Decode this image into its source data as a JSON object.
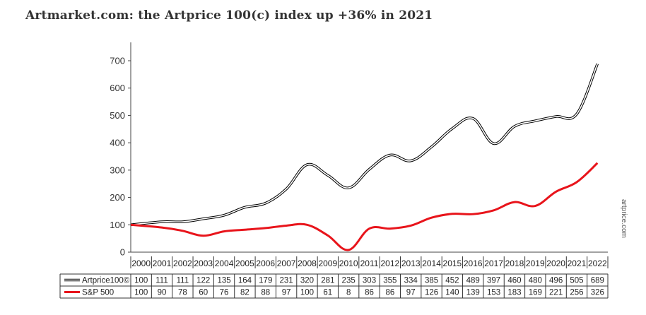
{
  "page": {
    "title": "Artmarket.com: the Artprice 100(c) index up +36% in 2021",
    "watermark": "artprice.com"
  },
  "chart_data": {
    "type": "line",
    "title": "Artmarket.com: the Artprice 100(c) index up +36% in 2021",
    "xlabel": "",
    "ylabel": "",
    "categories": [
      "2000",
      "2001",
      "2002",
      "2003",
      "2004",
      "2005",
      "2006",
      "2007",
      "2008",
      "2009",
      "2010",
      "2011",
      "2012",
      "2013",
      "2014",
      "2015",
      "2016",
      "2017",
      "2018",
      "2019",
      "2020",
      "2021",
      "2022"
    ],
    "ylim": [
      0,
      700
    ],
    "yticks": [
      0,
      100,
      200,
      300,
      400,
      500,
      600,
      700
    ],
    "grid": false,
    "legend": "bottom-left (data table)",
    "series": [
      {
        "name": "Artprice100©",
        "color": "#000000",
        "style": "double-line",
        "values": [
          100,
          111,
          111,
          122,
          135,
          164,
          179,
          231,
          320,
          281,
          235,
          303,
          355,
          334,
          385,
          452,
          489,
          397,
          460,
          480,
          496,
          505,
          689
        ]
      },
      {
        "name": "S&P 500",
        "color": "#e8141b",
        "style": "solid",
        "values": [
          100,
          90,
          78,
          60,
          76,
          82,
          88,
          97,
          100,
          61,
          8,
          86,
          86,
          97,
          126,
          140,
          139,
          153,
          183,
          169,
          221,
          256,
          326
        ]
      }
    ]
  }
}
